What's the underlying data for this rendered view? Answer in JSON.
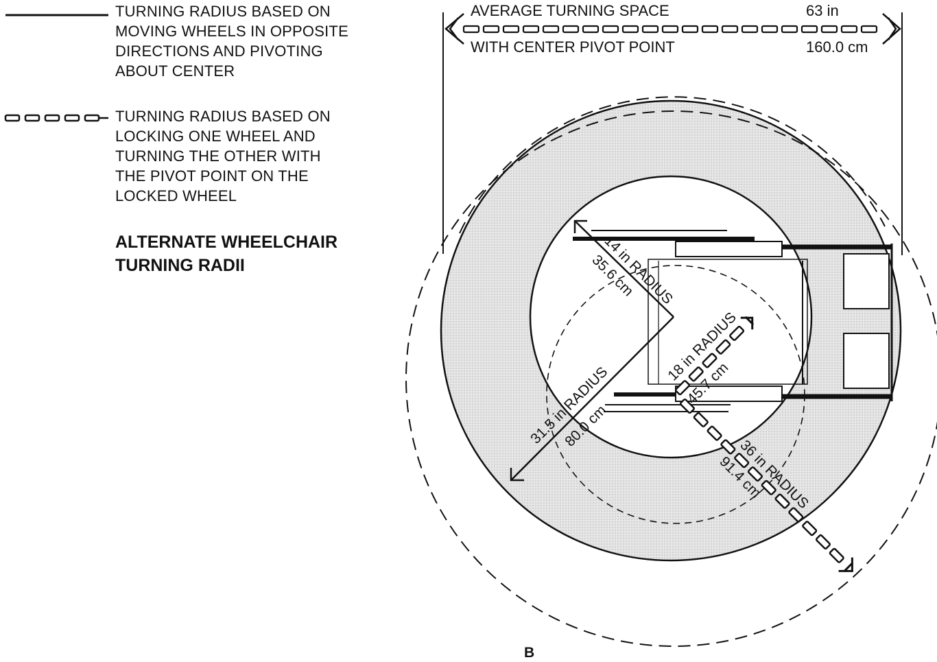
{
  "legend": [
    {
      "style": "solid",
      "text": "TURNING RADIUS BASED ON\nMOVING WHEELS IN OPPOSITE\nDIRECTIONS AND PIVOTING\nABOUT CENTER"
    },
    {
      "style": "dashed",
      "text": "TURNING RADIUS BASED ON\nLOCKING ONE WHEEL AND\nTURNING THE OTHER WITH\nTHE PIVOT POINT ON THE\nLOCKED WHEEL"
    }
  ],
  "subtitle": "ALTERNATE WHEELCHAIR\nTURNING RADII",
  "dimension": {
    "label_top": "AVERAGE TURNING SPACE",
    "label_bottom": "WITH CENTER PIVOT POINT",
    "value_in": "63 in",
    "value_cm": "160.0 cm"
  },
  "radii": {
    "r14_in": "14 in RADIUS",
    "r14_cm": "35.6 cm",
    "r18_in": "18 in RADIUS",
    "r18_cm": "45.7 cm",
    "r315_in": "31.5 in RADIUS",
    "r315_cm": "80.0 cm",
    "r36_in": "36 in RADIUS",
    "r36_cm": "91.4 cm"
  },
  "panel_letter": "B",
  "colors": {
    "ink": "#111111",
    "shade": "#d9d9d9"
  }
}
